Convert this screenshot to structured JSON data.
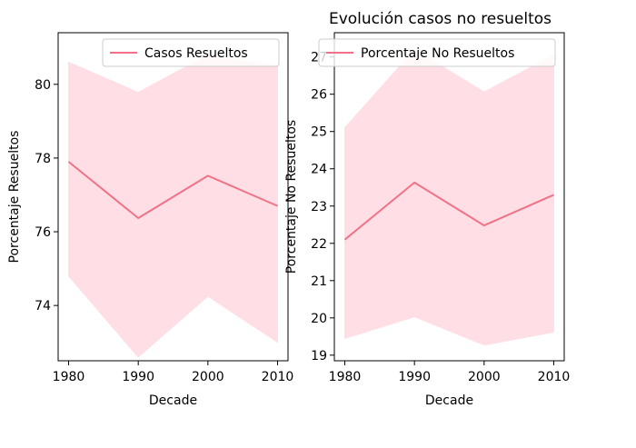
{
  "chart_data": [
    {
      "type": "line",
      "title": "",
      "xlabel": "Decade",
      "ylabel": "Porcentaje Resueltos",
      "x": [
        1980,
        1990,
        2000,
        2010
      ],
      "x_ticks": [
        "1980",
        "1990",
        "2000",
        "2010"
      ],
      "xlim": [
        1978.5,
        2011.5
      ],
      "ylim": [
        72.5,
        81.4
      ],
      "y_ticks": [
        74,
        76,
        78,
        80
      ],
      "y_tick_labels": [
        "74",
        "76",
        "78",
        "80"
      ],
      "legend_position": "top-right",
      "grid": false,
      "series": [
        {
          "name": "Casos Resueltos",
          "color": "#f07288",
          "band_color": "#ffdfe5",
          "values": [
            77.9,
            76.37,
            77.52,
            76.7
          ],
          "lower": [
            74.8,
            72.6,
            74.25,
            73.0
          ],
          "upper": [
            80.6,
            79.78,
            80.8,
            80.5
          ]
        }
      ]
    },
    {
      "type": "line",
      "title": "Evolución casos no resueltos",
      "xlabel": "Decade",
      "ylabel": "Porcentaje No Resueltos",
      "x": [
        1980,
        1990,
        2000,
        2010
      ],
      "x_ticks": [
        "1980",
        "1990",
        "2000",
        "2010"
      ],
      "xlim": [
        1978.5,
        2011.5
      ],
      "ylim": [
        18.85,
        27.65
      ],
      "y_ticks": [
        19,
        20,
        21,
        22,
        23,
        24,
        25,
        26,
        27
      ],
      "y_tick_labels": [
        "19",
        "20",
        "21",
        "22",
        "23",
        "24",
        "25",
        "26",
        "27"
      ],
      "legend_position": "top-right",
      "grid": false,
      "series": [
        {
          "name": "Porcentaje No Resueltos",
          "color": "#f07288",
          "band_color": "#ffdfe5",
          "values": [
            22.1,
            23.63,
            22.48,
            23.3
          ],
          "lower": [
            19.45,
            20.03,
            19.27,
            19.62
          ],
          "upper": [
            25.1,
            27.2,
            26.06,
            27.05
          ]
        }
      ]
    }
  ]
}
